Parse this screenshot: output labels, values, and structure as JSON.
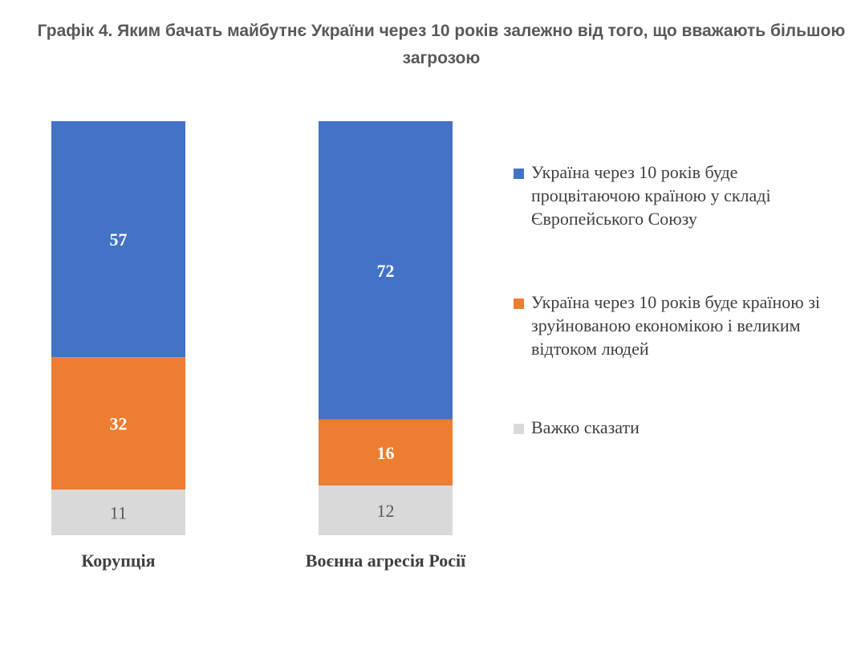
{
  "title": "Графік 4. Яким бачать майбутнє України через 10 років залежно від того, що вважають більшою загрозою",
  "chart_data": {
    "type": "bar",
    "stacked": true,
    "categories": [
      "Корупція",
      "Воєнна агресія Росії"
    ],
    "series": [
      {
        "name": "Україна через 10 років буде процвітаючою країною у складі Європейського Союзу",
        "values": [
          57,
          72
        ],
        "color": "#4472C4",
        "label_color": "#FFFFFF"
      },
      {
        "name": "Україна через 10 років буде країною зі зруйнованою економікою і великим відтоком людей",
        "values": [
          32,
          16
        ],
        "color": "#ED7D31",
        "label_color": "#FFFFFF"
      },
      {
        "name": "Важко сказати",
        "values": [
          11,
          12
        ],
        "color": "#D9D9D9",
        "label_color": "#595959"
      }
    ],
    "ylim": [
      0,
      100
    ],
    "grid": false,
    "legend": "right"
  }
}
